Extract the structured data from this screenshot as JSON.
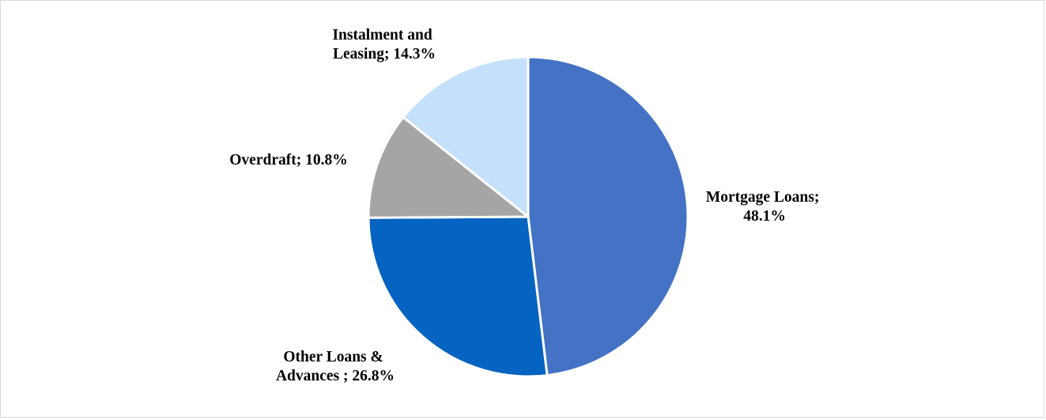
{
  "chart_data": {
    "type": "pie",
    "title": "",
    "start_angle_deg": 0,
    "direction": "clockwise",
    "slices": [
      {
        "name": "Mortgage Loans",
        "value": 48.1,
        "label_lines": [
          "Mortgage Loans;",
          "48.1%"
        ],
        "color": "#4472C4"
      },
      {
        "name": "Other Loans & Advances",
        "value": 26.8,
        "label_lines": [
          "Other Loans &",
          "Advances ; 26.8%"
        ],
        "color": "#0563C1"
      },
      {
        "name": "Overdraft",
        "value": 10.8,
        "label_lines": [
          "Overdraft; 10.8%"
        ],
        "color": "#A5A5A5"
      },
      {
        "name": "Instalment and Leasing",
        "value": 14.3,
        "label_lines": [
          "Instalment and",
          "Leasing; 14.3%"
        ],
        "color": "#C5E0FA"
      }
    ],
    "legend": "none"
  }
}
